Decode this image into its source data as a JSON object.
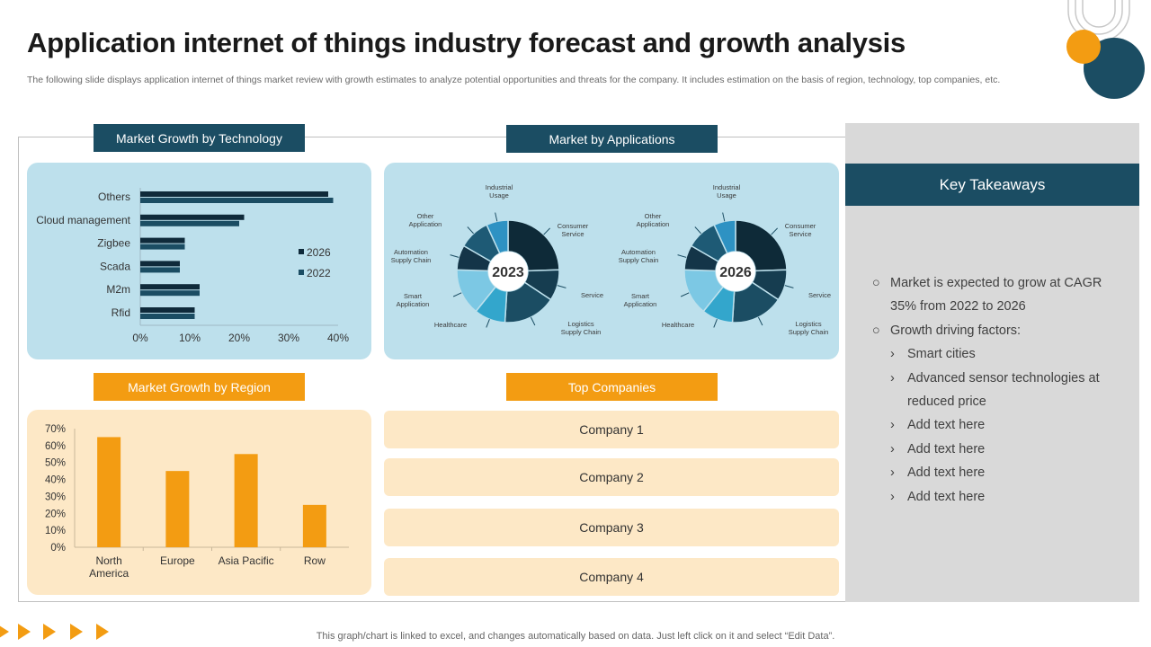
{
  "page": {
    "title": "Application internet of things industry forecast and growth analysis",
    "subtitle": "The following slide displays application internet of things market review with growth estimates to analyze potential opportunities and threats for the company. It includes estimation on the basis of region, technology, top companies, etc.",
    "footer": "This graph/chart is linked to excel,  and changes automatically based on data. Just left click on it and select “Edit Data”."
  },
  "colors": {
    "dark": "#1b4d63",
    "orange": "#f39c12",
    "light_blue": "#bde0ec",
    "cream": "#fde8c6",
    "gray": "#d9d9d9"
  },
  "sections": {
    "technology": "Market Growth by Technology",
    "applications": "Market by Applications",
    "region": "Market Growth by Region",
    "companies": "Top Companies",
    "takeaways": "Key Takeaways"
  },
  "companies": [
    "Company 1",
    "Company 2",
    "Company 3",
    "Company 4"
  ],
  "takeaways": {
    "items": [
      {
        "text": "Market is expected to grow at CAGR 35% from 2022 to 2026",
        "subitems": []
      },
      {
        "text": "Growth driving factors:",
        "subitems": [
          "Smart cities",
          "Advanced sensor technologies at reduced price",
          "Add text here",
          "Add text here",
          "Add text here",
          "Add text here"
        ]
      }
    ]
  },
  "chart_data": [
    {
      "type": "bar",
      "orientation": "horizontal",
      "title": "Market Growth by Technology",
      "categories": [
        "Others",
        "Cloud management",
        "Zigbee",
        "Scada",
        "M2m",
        "Rfid"
      ],
      "series": [
        {
          "name": "2026",
          "values": [
            38,
            21,
            9,
            8,
            12,
            11
          ],
          "color": "#0f2a3a"
        },
        {
          "name": "2022",
          "values": [
            39,
            20,
            9,
            8,
            12,
            11
          ],
          "color": "#1b4d63"
        }
      ],
      "xlim": [
        0,
        40
      ],
      "xticks": [
        "0%",
        "10%",
        "20%",
        "30%",
        "40%"
      ],
      "legend": "right"
    },
    {
      "type": "pie",
      "title": "Market by Applications",
      "center_label": "2023",
      "labels": [
        "Consumer Service",
        "Service",
        "Logistics Supply Chain",
        "Healthcare",
        "Smart Application",
        "Automation Supply Chain",
        "Other Application",
        "Industrial Usage"
      ],
      "values": [
        25,
        10,
        17,
        10,
        15,
        8,
        10,
        7
      ]
    },
    {
      "type": "pie",
      "title": "Market by Applications",
      "center_label": "2026",
      "labels": [
        "Consumer Service",
        "Service",
        "Logistics Supply Chain",
        "Healthcare",
        "Smart Application",
        "Automation Supply Chain",
        "Other Application",
        "Industrial Usage"
      ],
      "values": [
        25,
        10,
        17,
        10,
        15,
        8,
        10,
        7
      ]
    },
    {
      "type": "bar",
      "title": "Market Growth by Region",
      "categories": [
        "North America",
        "Europe",
        "Asia Pacific",
        "Row"
      ],
      "values": [
        65,
        45,
        55,
        25
      ],
      "ylim": [
        0,
        70
      ],
      "yticks": [
        "0%",
        "10%",
        "20%",
        "30%",
        "40%",
        "50%",
        "60%",
        "70%"
      ],
      "color": "#f39c12"
    }
  ]
}
